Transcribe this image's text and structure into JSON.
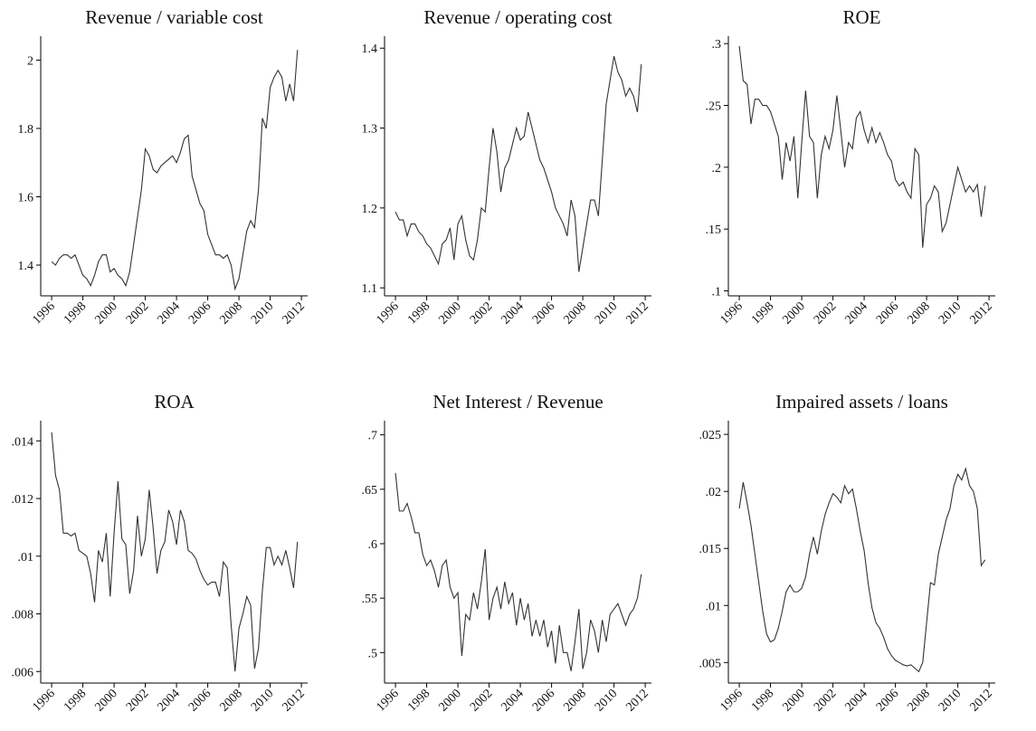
{
  "chart_data": [
    {
      "type": "line",
      "title": "Revenue / variable cost",
      "color": "#333333",
      "x": [
        1996,
        1996.25,
        1996.5,
        1996.75,
        1997,
        1997.25,
        1997.5,
        1997.75,
        1998,
        1998.25,
        1998.5,
        1998.75,
        1999,
        1999.25,
        1999.5,
        1999.75,
        2000,
        2000.25,
        2000.5,
        2000.75,
        2001,
        2001.25,
        2001.5,
        2001.75,
        2002,
        2002.25,
        2002.5,
        2002.75,
        2003,
        2003.25,
        2003.5,
        2003.75,
        2004,
        2004.25,
        2004.5,
        2004.75,
        2005,
        2005.25,
        2005.5,
        2005.75,
        2006,
        2006.25,
        2006.5,
        2006.75,
        2007,
        2007.25,
        2007.5,
        2007.75,
        2008,
        2008.25,
        2008.5,
        2008.75,
        2009,
        2009.25,
        2009.5,
        2009.75,
        2010,
        2010.25,
        2010.5,
        2010.75,
        2011,
        2011.25,
        2011.5,
        2011.75
      ],
      "values": [
        1.41,
        1.4,
        1.42,
        1.43,
        1.43,
        1.42,
        1.43,
        1.4,
        1.37,
        1.36,
        1.34,
        1.37,
        1.41,
        1.43,
        1.43,
        1.38,
        1.39,
        1.37,
        1.36,
        1.34,
        1.38,
        1.46,
        1.54,
        1.62,
        1.74,
        1.72,
        1.68,
        1.67,
        1.69,
        1.7,
        1.71,
        1.72,
        1.7,
        1.73,
        1.77,
        1.78,
        1.66,
        1.62,
        1.58,
        1.56,
        1.49,
        1.46,
        1.43,
        1.43,
        1.42,
        1.43,
        1.4,
        1.33,
        1.36,
        1.43,
        1.5,
        1.53,
        1.51,
        1.62,
        1.83,
        1.8,
        1.92,
        1.95,
        1.97,
        1.95,
        1.88,
        1.93,
        1.88,
        2.03
      ],
      "xlim": [
        1995.3,
        2012.4
      ],
      "xticks": [
        1996,
        1998,
        2000,
        2002,
        2004,
        2006,
        2008,
        2010,
        2012
      ],
      "ylim": [
        1.31,
        2.07
      ],
      "yticks": [
        1.4,
        1.6,
        1.8,
        2
      ]
    },
    {
      "type": "line",
      "title": "Revenue / operating cost",
      "color": "#333333",
      "x": [
        1996,
        1996.25,
        1996.5,
        1996.75,
        1997,
        1997.25,
        1997.5,
        1997.75,
        1998,
        1998.25,
        1998.5,
        1998.75,
        1999,
        1999.25,
        1999.5,
        1999.75,
        2000,
        2000.25,
        2000.5,
        2000.75,
        2001,
        2001.25,
        2001.5,
        2001.75,
        2002,
        2002.25,
        2002.5,
        2002.75,
        2003,
        2003.25,
        2003.5,
        2003.75,
        2004,
        2004.25,
        2004.5,
        2004.75,
        2005,
        2005.25,
        2005.5,
        2005.75,
        2006,
        2006.25,
        2006.5,
        2006.75,
        2007,
        2007.25,
        2007.5,
        2007.75,
        2008,
        2008.25,
        2008.5,
        2008.75,
        2009,
        2009.25,
        2009.5,
        2009.75,
        2010,
        2010.25,
        2010.5,
        2010.75,
        2011,
        2011.25,
        2011.5,
        2011.75
      ],
      "values": [
        1.195,
        1.185,
        1.185,
        1.165,
        1.18,
        1.18,
        1.17,
        1.165,
        1.155,
        1.15,
        1.14,
        1.13,
        1.155,
        1.16,
        1.175,
        1.135,
        1.18,
        1.19,
        1.16,
        1.14,
        1.135,
        1.16,
        1.2,
        1.195,
        1.25,
        1.3,
        1.27,
        1.22,
        1.25,
        1.26,
        1.28,
        1.3,
        1.285,
        1.29,
        1.32,
        1.3,
        1.28,
        1.26,
        1.25,
        1.235,
        1.22,
        1.2,
        1.19,
        1.18,
        1.165,
        1.21,
        1.19,
        1.12,
        1.15,
        1.18,
        1.21,
        1.21,
        1.19,
        1.26,
        1.33,
        1.36,
        1.39,
        1.37,
        1.36,
        1.34,
        1.35,
        1.34,
        1.32,
        1.38
      ],
      "xlim": [
        1995.3,
        2012.4
      ],
      "xticks": [
        1996,
        1998,
        2000,
        2002,
        2004,
        2006,
        2008,
        2010,
        2012
      ],
      "ylim": [
        1.09,
        1.415
      ],
      "yticks": [
        1.1,
        1.2,
        1.3,
        1.4
      ]
    },
    {
      "type": "line",
      "title": "ROE",
      "color": "#333333",
      "x": [
        1996,
        1996.25,
        1996.5,
        1996.75,
        1997,
        1997.25,
        1997.5,
        1997.75,
        1998,
        1998.25,
        1998.5,
        1998.75,
        1999,
        1999.25,
        1999.5,
        1999.75,
        2000,
        2000.25,
        2000.5,
        2000.75,
        2001,
        2001.25,
        2001.5,
        2001.75,
        2002,
        2002.25,
        2002.5,
        2002.75,
        2003,
        2003.25,
        2003.5,
        2003.75,
        2004,
        2004.25,
        2004.5,
        2004.75,
        2005,
        2005.25,
        2005.5,
        2005.75,
        2006,
        2006.25,
        2006.5,
        2006.75,
        2007,
        2007.25,
        2007.5,
        2007.75,
        2008,
        2008.25,
        2008.5,
        2008.75,
        2009,
        2009.25,
        2009.5,
        2009.75,
        2010,
        2010.25,
        2010.5,
        2010.75,
        2011,
        2011.25,
        2011.5,
        2011.75
      ],
      "values": [
        0.298,
        0.27,
        0.267,
        0.235,
        0.255,
        0.255,
        0.25,
        0.25,
        0.245,
        0.235,
        0.225,
        0.19,
        0.22,
        0.205,
        0.225,
        0.175,
        0.22,
        0.262,
        0.225,
        0.22,
        0.175,
        0.21,
        0.225,
        0.215,
        0.23,
        0.258,
        0.23,
        0.2,
        0.22,
        0.215,
        0.24,
        0.245,
        0.23,
        0.22,
        0.232,
        0.22,
        0.228,
        0.22,
        0.21,
        0.205,
        0.19,
        0.185,
        0.188,
        0.18,
        0.175,
        0.215,
        0.21,
        0.135,
        0.17,
        0.175,
        0.185,
        0.18,
        0.148,
        0.155,
        0.17,
        0.185,
        0.2,
        0.19,
        0.18,
        0.185,
        0.18,
        0.186,
        0.16,
        0.185
      ],
      "xlim": [
        1995.3,
        2012.4
      ],
      "xticks": [
        1996,
        1998,
        2000,
        2002,
        2004,
        2006,
        2008,
        2010,
        2012
      ],
      "ylim": [
        0.096,
        0.306
      ],
      "yticks": [
        {
          "value": 0.1,
          "label": ".1"
        },
        {
          "value": 0.15,
          "label": ".15"
        },
        {
          "value": 0.2,
          "label": ".2"
        },
        {
          "value": 0.25,
          "label": ".25"
        },
        {
          "value": 0.3,
          "label": ".3"
        }
      ]
    },
    {
      "type": "line",
      "title": "ROA",
      "color": "#333333",
      "x": [
        1996,
        1996.25,
        1996.5,
        1996.75,
        1997,
        1997.25,
        1997.5,
        1997.75,
        1998,
        1998.25,
        1998.5,
        1998.75,
        1999,
        1999.25,
        1999.5,
        1999.75,
        2000,
        2000.25,
        2000.5,
        2000.75,
        2001,
        2001.25,
        2001.5,
        2001.75,
        2002,
        2002.25,
        2002.5,
        2002.75,
        2003,
        2003.25,
        2003.5,
        2003.75,
        2004,
        2004.25,
        2004.5,
        2004.75,
        2005,
        2005.25,
        2005.5,
        2005.75,
        2006,
        2006.25,
        2006.5,
        2006.75,
        2007,
        2007.25,
        2007.5,
        2007.75,
        2008,
        2008.25,
        2008.5,
        2008.75,
        2009,
        2009.25,
        2009.5,
        2009.75,
        2010,
        2010.25,
        2010.5,
        2010.75,
        2011,
        2011.25,
        2011.5,
        2011.75
      ],
      "values": [
        0.0143,
        0.0128,
        0.0123,
        0.0108,
        0.0108,
        0.0107,
        0.0108,
        0.0102,
        0.0101,
        0.01,
        0.0094,
        0.0084,
        0.0102,
        0.0098,
        0.0108,
        0.0086,
        0.0108,
        0.0126,
        0.0106,
        0.0104,
        0.0087,
        0.0095,
        0.0114,
        0.01,
        0.0106,
        0.0123,
        0.011,
        0.0094,
        0.0102,
        0.0105,
        0.0116,
        0.0112,
        0.0104,
        0.0116,
        0.0112,
        0.0102,
        0.0101,
        0.0099,
        0.0095,
        0.0092,
        0.009,
        0.0091,
        0.0091,
        0.0086,
        0.0098,
        0.0096,
        0.0076,
        0.006,
        0.0075,
        0.008,
        0.0086,
        0.0083,
        0.0061,
        0.0068,
        0.0088,
        0.0103,
        0.0103,
        0.0097,
        0.01,
        0.0097,
        0.0102,
        0.0096,
        0.0089,
        0.0105
      ],
      "xlim": [
        1995.3,
        2012.4
      ],
      "xticks": [
        1996,
        1998,
        2000,
        2002,
        2004,
        2006,
        2008,
        2010,
        2012
      ],
      "ylim": [
        0.0056,
        0.0147
      ],
      "yticks": [
        {
          "value": 0.006,
          "label": ".006"
        },
        {
          "value": 0.008,
          "label": ".008"
        },
        {
          "value": 0.01,
          "label": ".01"
        },
        {
          "value": 0.012,
          "label": ".012"
        },
        {
          "value": 0.014,
          "label": ".014"
        }
      ]
    },
    {
      "type": "line",
      "title": "Net Interest / Revenue",
      "color": "#333333",
      "x": [
        1996,
        1996.25,
        1996.5,
        1996.75,
        1997,
        1997.25,
        1997.5,
        1997.75,
        1998,
        1998.25,
        1998.5,
        1998.75,
        1999,
        1999.25,
        1999.5,
        1999.75,
        2000,
        2000.25,
        2000.5,
        2000.75,
        2001,
        2001.25,
        2001.5,
        2001.75,
        2002,
        2002.25,
        2002.5,
        2002.75,
        2003,
        2003.25,
        2003.5,
        2003.75,
        2004,
        2004.25,
        2004.5,
        2004.75,
        2005,
        2005.25,
        2005.5,
        2005.75,
        2006,
        2006.25,
        2006.5,
        2006.75,
        2007,
        2007.25,
        2007.5,
        2007.75,
        2008,
        2008.25,
        2008.5,
        2008.75,
        2009,
        2009.25,
        2009.5,
        2009.75,
        2010,
        2010.25,
        2010.5,
        2010.75,
        2011,
        2011.25,
        2011.5,
        2011.75
      ],
      "values": [
        0.665,
        0.63,
        0.63,
        0.637,
        0.625,
        0.61,
        0.61,
        0.59,
        0.58,
        0.585,
        0.575,
        0.56,
        0.58,
        0.585,
        0.56,
        0.55,
        0.555,
        0.497,
        0.535,
        0.53,
        0.555,
        0.54,
        0.565,
        0.595,
        0.53,
        0.55,
        0.56,
        0.54,
        0.565,
        0.545,
        0.555,
        0.525,
        0.55,
        0.53,
        0.545,
        0.515,
        0.53,
        0.515,
        0.53,
        0.505,
        0.52,
        0.49,
        0.525,
        0.5,
        0.5,
        0.483,
        0.51,
        0.54,
        0.485,
        0.5,
        0.53,
        0.52,
        0.5,
        0.53,
        0.51,
        0.535,
        0.54,
        0.545,
        0.535,
        0.525,
        0.535,
        0.54,
        0.55,
        0.572
      ],
      "xlim": [
        1995.3,
        2012.4
      ],
      "xticks": [
        1996,
        1998,
        2000,
        2002,
        2004,
        2006,
        2008,
        2010,
        2012
      ],
      "ylim": [
        0.472,
        0.713
      ],
      "yticks": [
        {
          "value": 0.5,
          "label": ".5"
        },
        {
          "value": 0.55,
          "label": ".55"
        },
        {
          "value": 0.6,
          "label": ".6"
        },
        {
          "value": 0.65,
          "label": ".65"
        },
        {
          "value": 0.7,
          "label": ".7"
        }
      ]
    },
    {
      "type": "line",
      "title": "Impaired assets / loans",
      "color": "#333333",
      "x": [
        1996,
        1996.25,
        1996.5,
        1996.75,
        1997,
        1997.25,
        1997.5,
        1997.75,
        1998,
        1998.25,
        1998.5,
        1998.75,
        1999,
        1999.25,
        1999.5,
        1999.75,
        2000,
        2000.25,
        2000.5,
        2000.75,
        2001,
        2001.25,
        2001.5,
        2001.75,
        2002,
        2002.25,
        2002.5,
        2002.75,
        2003,
        2003.25,
        2003.5,
        2003.75,
        2004,
        2004.25,
        2004.5,
        2004.75,
        2005,
        2005.25,
        2005.5,
        2005.75,
        2006,
        2006.25,
        2006.5,
        2006.75,
        2007,
        2007.25,
        2007.5,
        2007.75,
        2008,
        2008.25,
        2008.5,
        2008.75,
        2009,
        2009.25,
        2009.5,
        2009.75,
        2010,
        2010.25,
        2010.5,
        2010.75,
        2011,
        2011.25,
        2011.5,
        2011.75
      ],
      "values": [
        0.0185,
        0.0208,
        0.019,
        0.017,
        0.0145,
        0.012,
        0.0095,
        0.0075,
        0.0068,
        0.007,
        0.008,
        0.0095,
        0.0112,
        0.0118,
        0.0112,
        0.0112,
        0.0115,
        0.0125,
        0.0145,
        0.016,
        0.0145,
        0.0165,
        0.018,
        0.019,
        0.0198,
        0.0195,
        0.019,
        0.0205,
        0.0198,
        0.0202,
        0.0185,
        0.0165,
        0.0148,
        0.012,
        0.0098,
        0.0085,
        0.008,
        0.0072,
        0.0062,
        0.0056,
        0.0052,
        0.005,
        0.0048,
        0.0047,
        0.0048,
        0.0045,
        0.0042,
        0.005,
        0.0085,
        0.012,
        0.0118,
        0.0145,
        0.016,
        0.0175,
        0.0185,
        0.0205,
        0.0215,
        0.021,
        0.022,
        0.0205,
        0.02,
        0.0185,
        0.0135,
        0.014
      ],
      "xlim": [
        1995.3,
        2012.4
      ],
      "xticks": [
        1996,
        1998,
        2000,
        2002,
        2004,
        2006,
        2008,
        2010,
        2012
      ],
      "ylim": [
        0.0032,
        0.0262
      ],
      "yticks": [
        {
          "value": 0.005,
          "label": ".005"
        },
        {
          "value": 0.01,
          "label": ".01"
        },
        {
          "value": 0.015,
          "label": ".015"
        },
        {
          "value": 0.02,
          "label": ".02"
        },
        {
          "value": 0.025,
          "label": ".025"
        }
      ]
    }
  ]
}
